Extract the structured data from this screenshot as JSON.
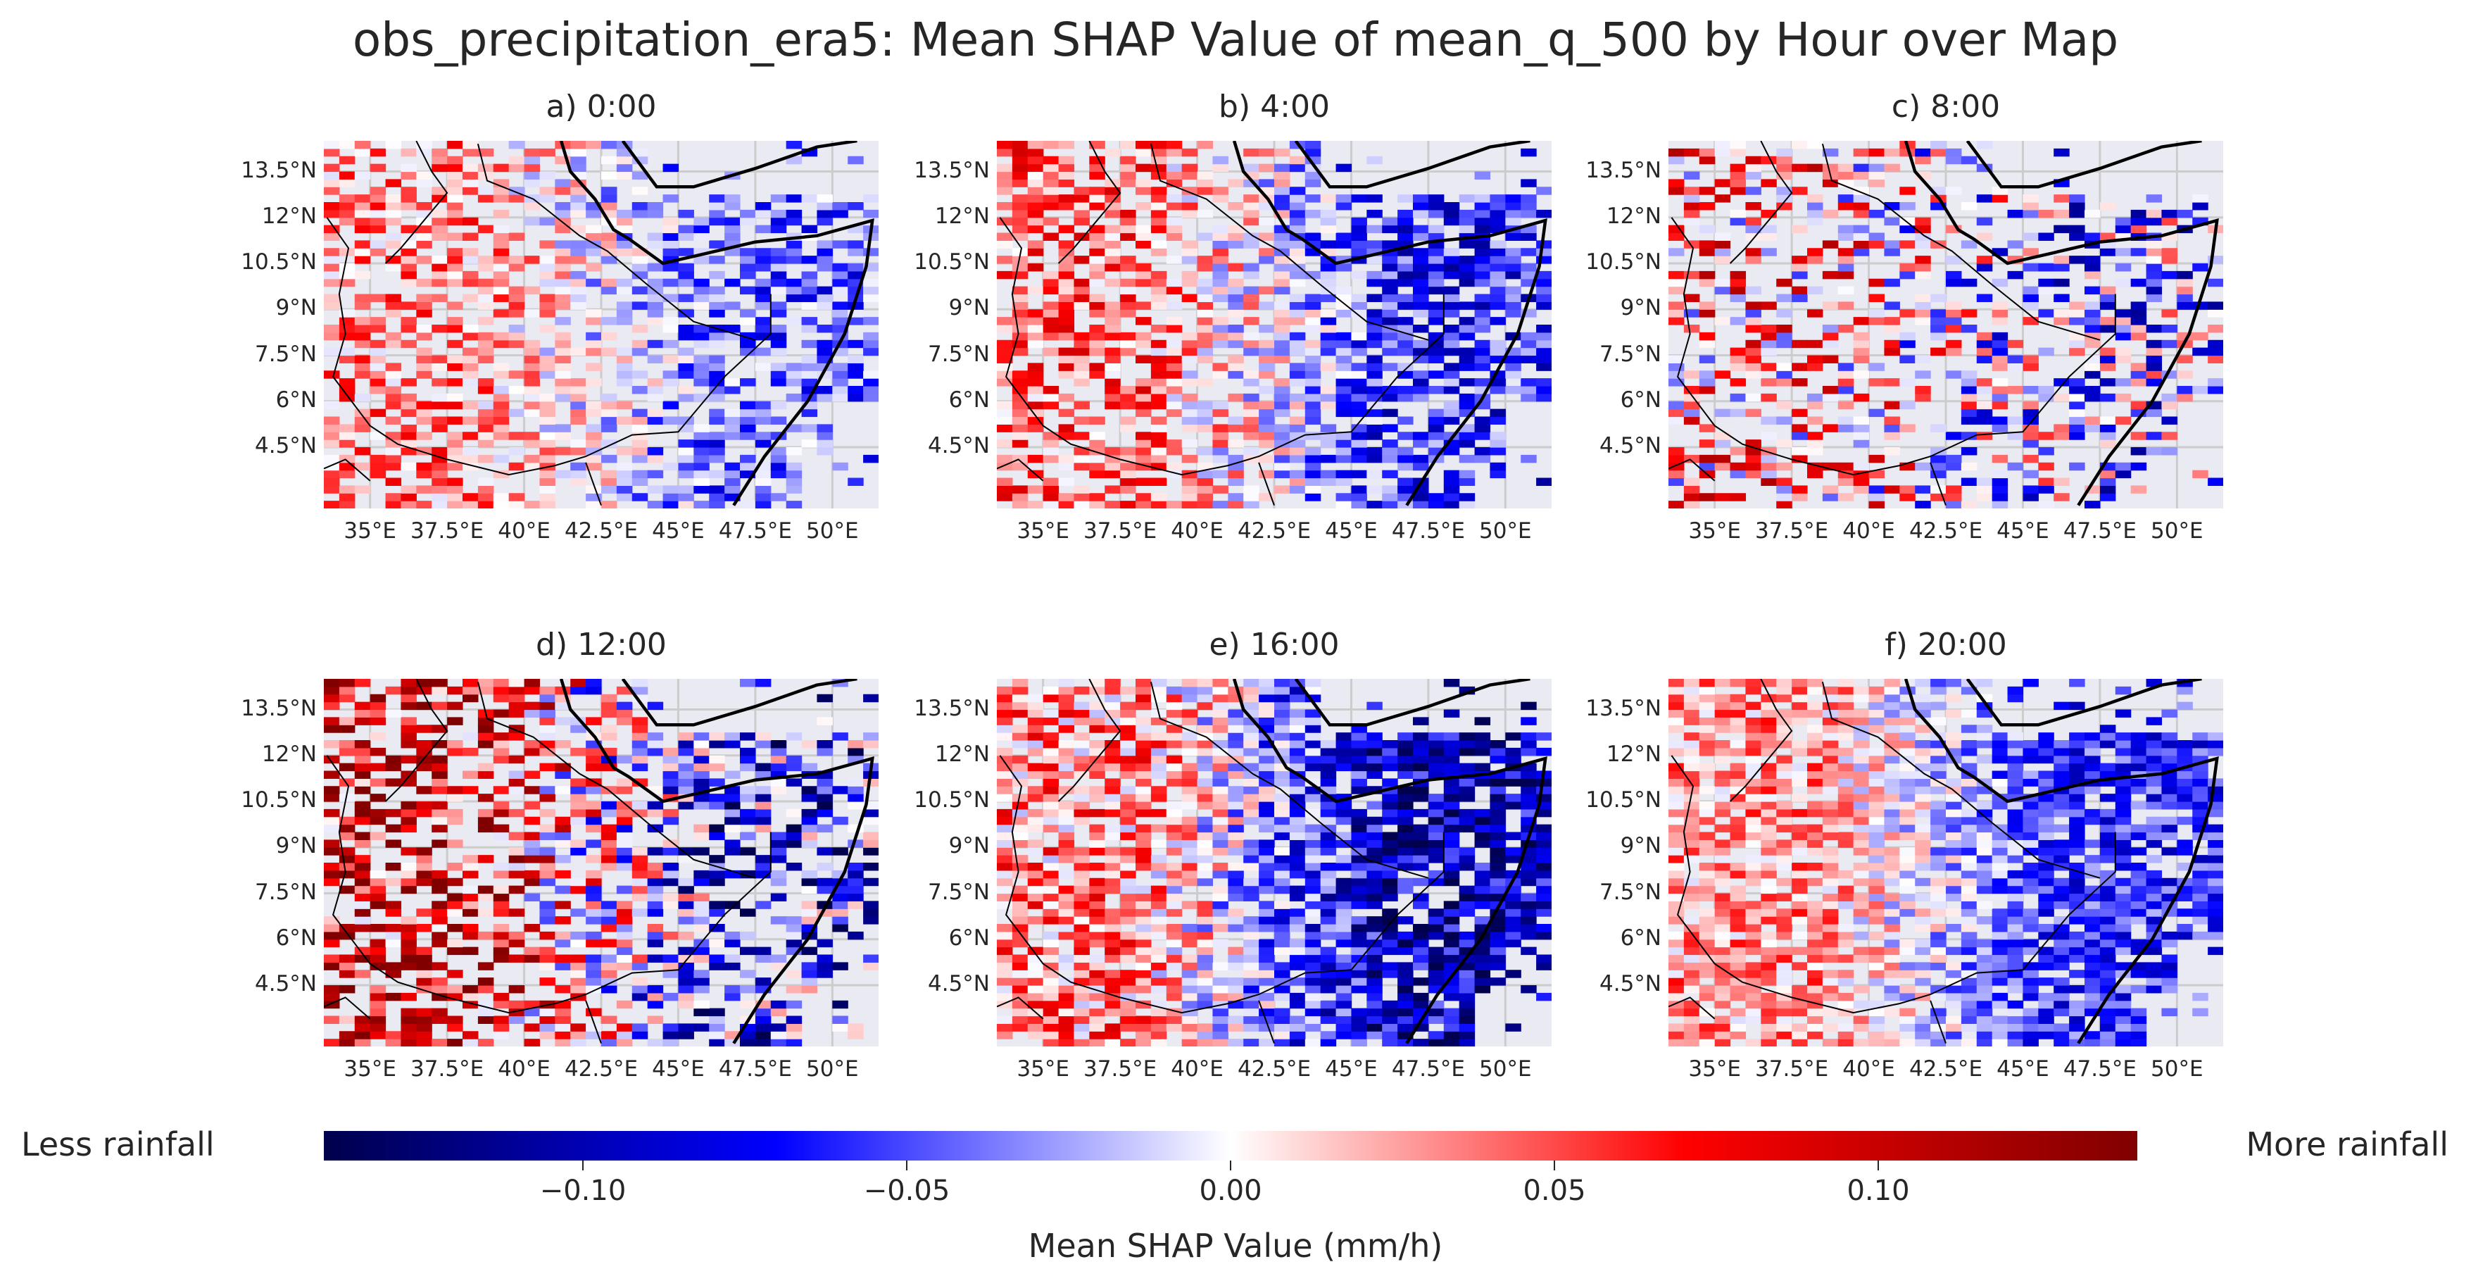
{
  "chart_data": {
    "type": "heatmap",
    "title": "obs_precipitation_era5: Mean SHAP Value of mean_q_500 by Hour over Map",
    "extent": {
      "lon": [
        33.5,
        51.5
      ],
      "lat": [
        2.5,
        14.5
      ]
    },
    "lat_ticks": [
      "13.5°N",
      "12°N",
      "10.5°N",
      "9°N",
      "7.5°N",
      "6°N",
      "4.5°N"
    ],
    "lat_values": [
      13.5,
      12,
      10.5,
      9,
      7.5,
      6,
      4.5
    ],
    "lon_ticks": [
      "35°E",
      "37.5°E",
      "40°E",
      "42.5°E",
      "45°E",
      "47.5°E",
      "50°E"
    ],
    "lon_values": [
      35,
      37.5,
      40,
      42.5,
      45,
      47.5,
      50
    ],
    "grid": true,
    "colormap": "seismic",
    "panels": [
      {
        "label": "a) 0:00",
        "pattern": {
          "west": 0.035,
          "east": -0.045,
          "density": 0.62,
          "noise": 0.045
        }
      },
      {
        "label": "b) 4:00",
        "pattern": {
          "west": 0.045,
          "east": -0.06,
          "density": 0.7,
          "noise": 0.05
        }
      },
      {
        "label": "c) 8:00",
        "pattern": {
          "west": 0.03,
          "east": -0.03,
          "density": 0.45,
          "noise": 0.085
        }
      },
      {
        "label": "d) 12:00",
        "pattern": {
          "west": 0.08,
          "east": -0.06,
          "density": 0.6,
          "noise": 0.09
        }
      },
      {
        "label": "e) 16:00",
        "pattern": {
          "west": 0.035,
          "east": -0.095,
          "density": 0.85,
          "noise": 0.055
        }
      },
      {
        "label": "f) 20:00",
        "pattern": {
          "west": 0.03,
          "east": -0.06,
          "density": 0.82,
          "noise": 0.04
        }
      }
    ],
    "colorbar": {
      "label": "Mean SHAP Value (mm/h)",
      "range": [
        -0.14,
        0.14
      ],
      "ticks": [
        "−0.10",
        "−0.05",
        "0.00",
        "0.05",
        "0.10"
      ],
      "tick_values": [
        -0.1,
        -0.05,
        0.0,
        0.05,
        0.1
      ],
      "left_label": "Less rainfall",
      "right_label": "More rainfall"
    },
    "colors": {
      "background": "#eaeaf2",
      "grid": "#cccccc",
      "negative": "#00007f",
      "positive": "#7f0000"
    }
  }
}
